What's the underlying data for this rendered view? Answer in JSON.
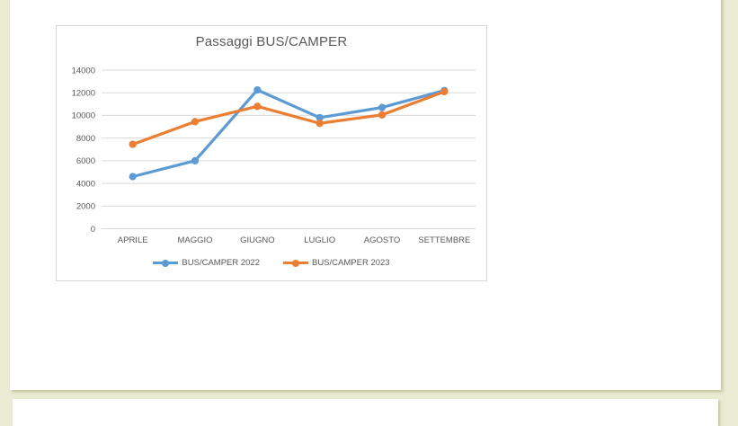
{
  "document": {
    "canvas_background": "#e9ecd2",
    "page_background": "#ffffff"
  },
  "chart_data": {
    "type": "line",
    "title": "Passaggi BUS/CAMPER",
    "categories": [
      "APRILE",
      "MAGGIO",
      "GIUGNO",
      "LUGLIO",
      "AGOSTO",
      "SETTEMBRE"
    ],
    "series": [
      {
        "name": "BUS/CAMPER 2022",
        "color": "#5B9BD5",
        "values": [
          4600,
          6000,
          12250,
          9800,
          10700,
          12200
        ]
      },
      {
        "name": "BUS/CAMPER 2023",
        "color": "#ED7D31",
        "values": [
          7450,
          9450,
          10800,
          9300,
          10050,
          12100
        ]
      }
    ],
    "xlabel": "",
    "ylabel": "",
    "ylim": [
      0,
      14000
    ],
    "yticks": [
      0,
      2000,
      4000,
      6000,
      8000,
      10000,
      12000,
      14000
    ],
    "grid": true,
    "legend_position": "bottom",
    "title_color": "#595959",
    "axis_text_color": "#595959",
    "gridline_color": "#d9d9d9",
    "chart_border_color": "#d7d7d7"
  }
}
